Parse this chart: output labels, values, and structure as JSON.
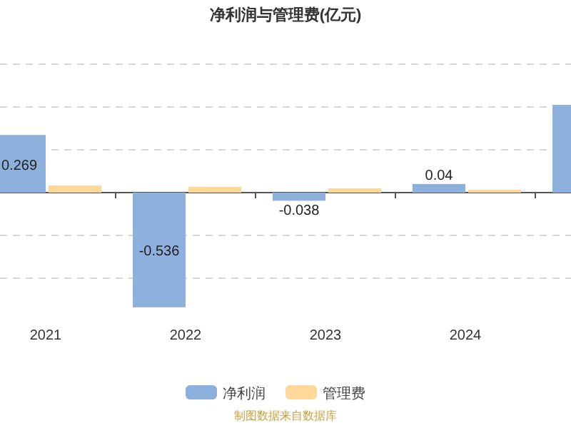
{
  "chart_data": {
    "type": "bar",
    "title": "净利润与管理费(亿元)",
    "categories": [
      "2021",
      "2022",
      "2023",
      "2024",
      null
    ],
    "tick_labels": "x",
    "series": [
      {
        "name": "净利润",
        "color": "#8eb0dc",
        "values": [
          0.269,
          -0.536,
          -0.038,
          0.04,
          0.41
        ],
        "value_labels": [
          "0.269",
          "-0.536",
          "-0.038",
          "0.04",
          null
        ]
      },
      {
        "name": "管理费",
        "color": "#fdd898",
        "values": [
          0.033,
          0.027,
          0.02,
          0.013,
          null
        ]
      }
    ],
    "grid": "y",
    "legend": "bottom",
    "annotations": [
      "制图数据来自数据库"
    ]
  }
}
